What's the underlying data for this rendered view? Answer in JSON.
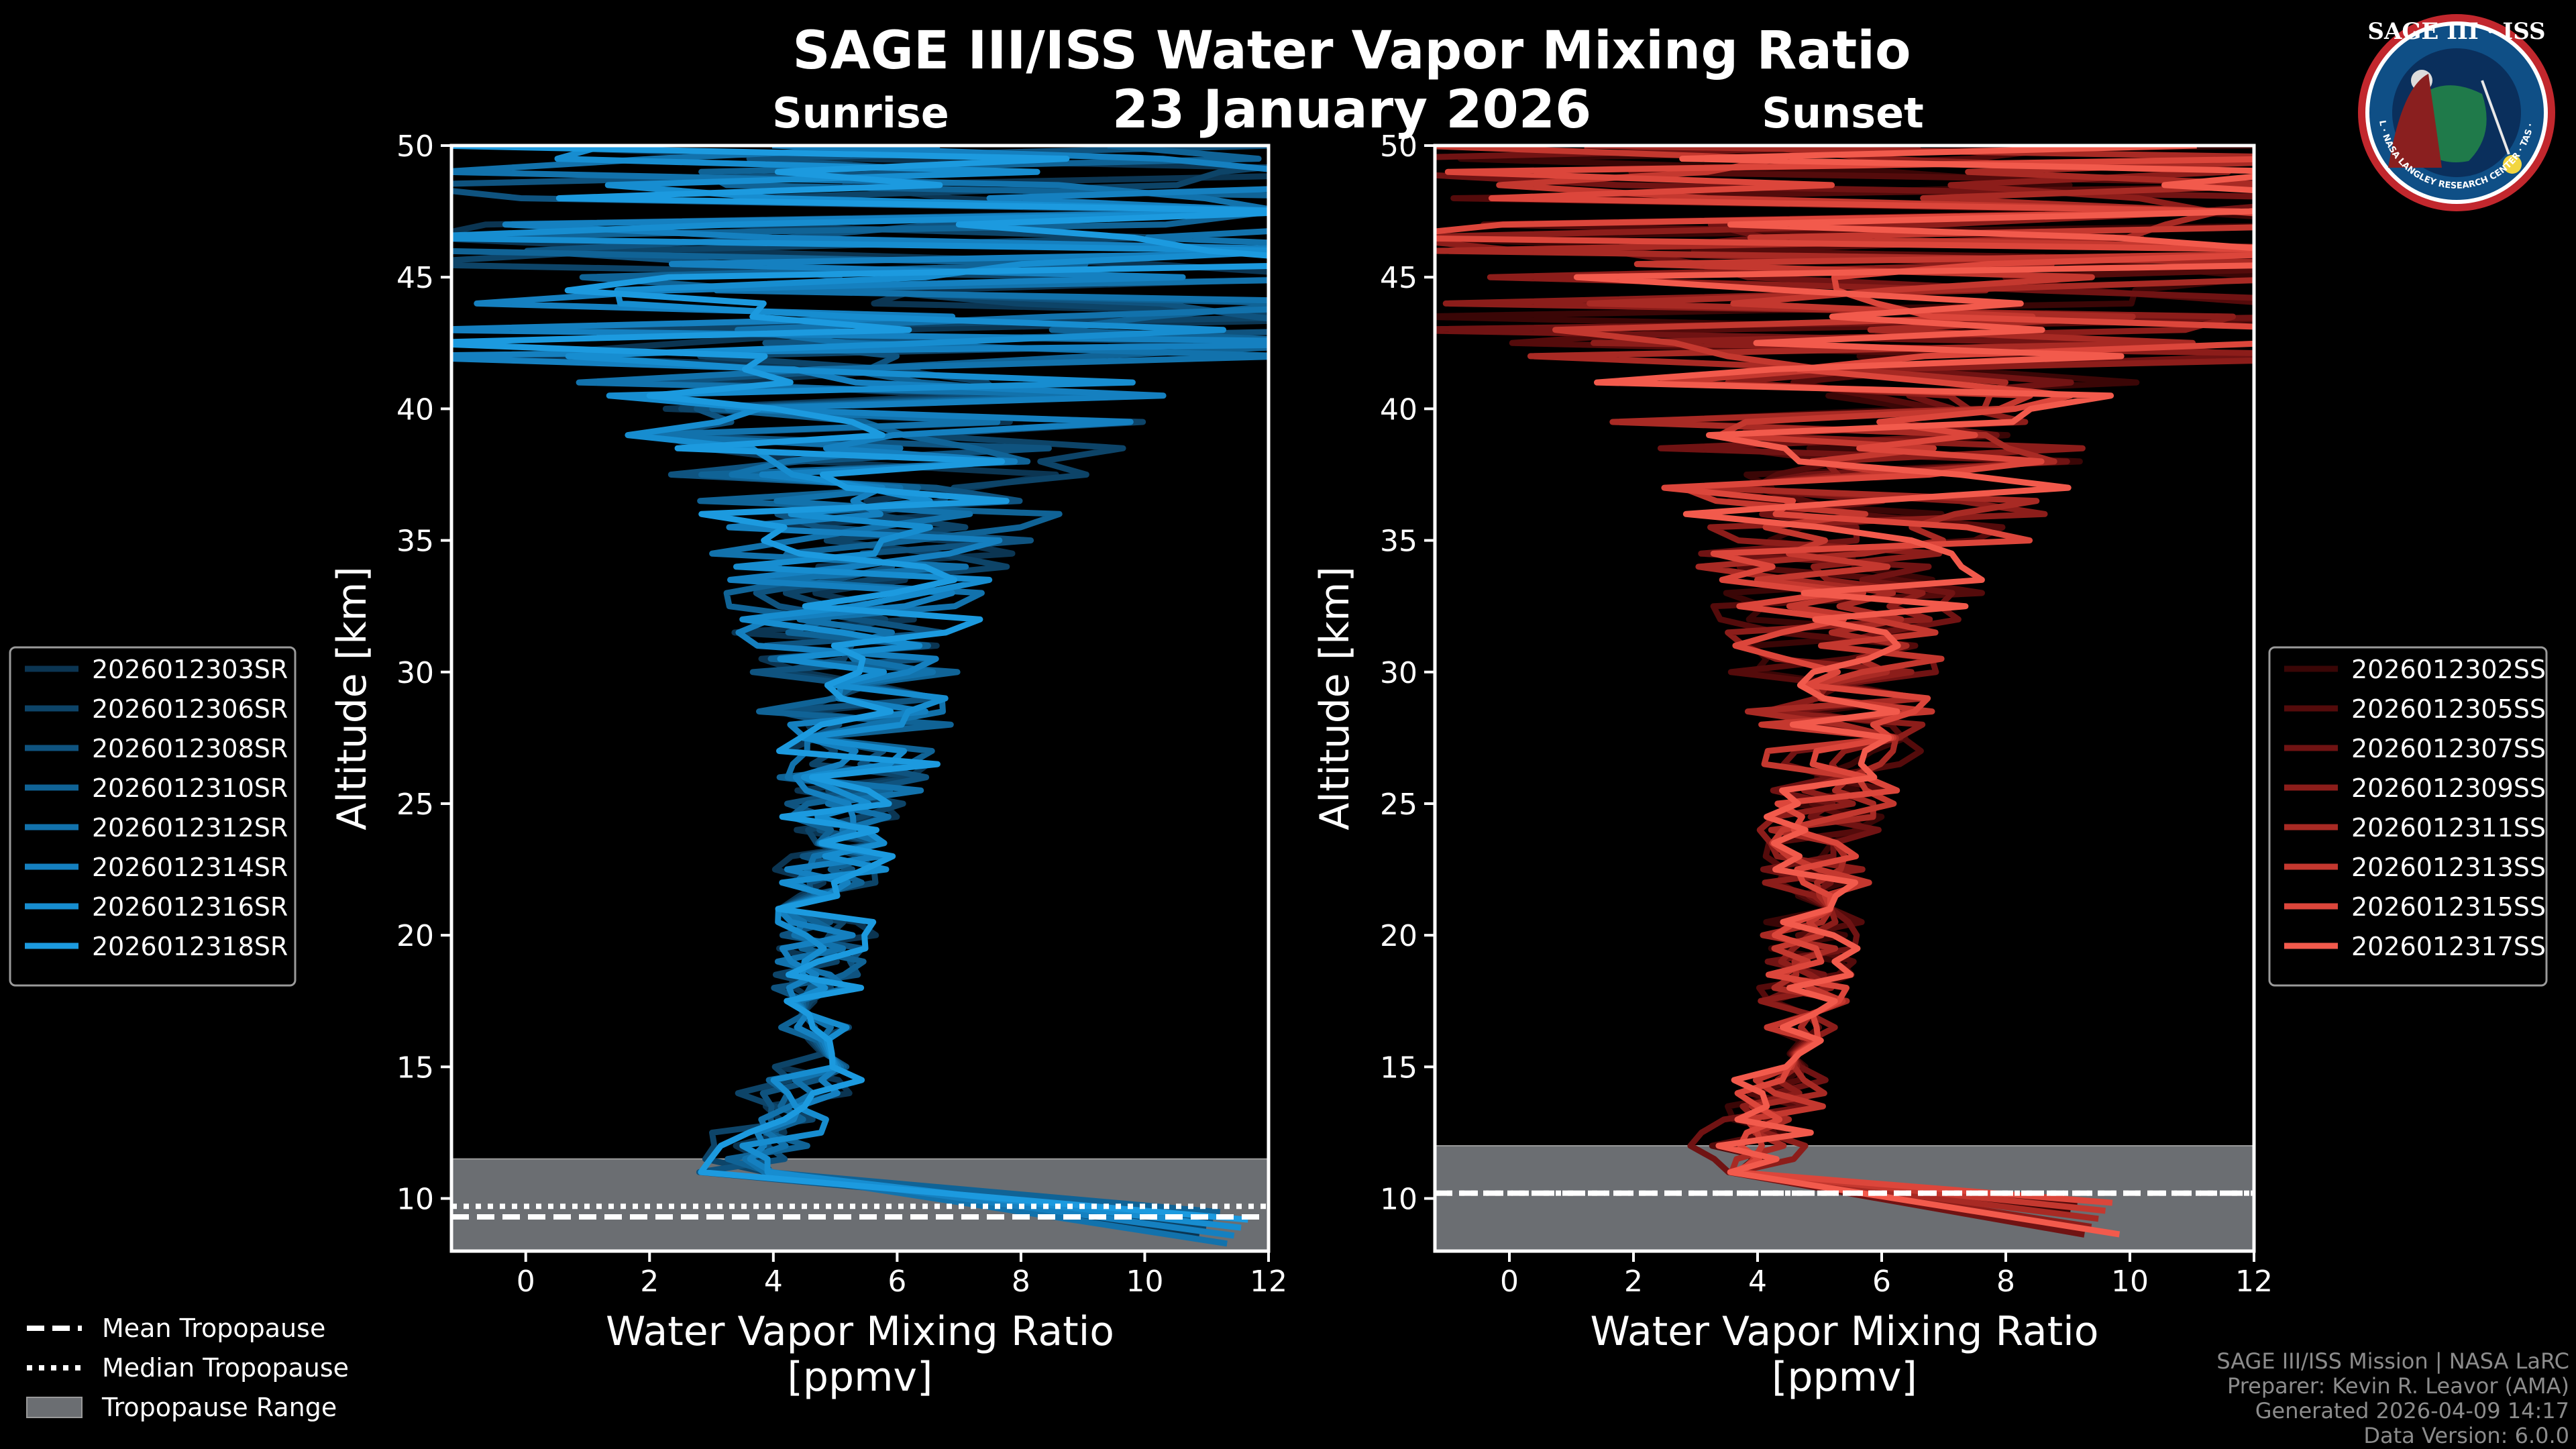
{
  "title": "SAGE III/ISS Water Vapor Mixing Ratio",
  "date": "23 January 2026",
  "colors": {
    "background": "#000000",
    "sunrise": "#1b95d6",
    "sunset": "#f0564a",
    "tropo_band": "#6b6e72"
  },
  "chart_data": [
    {
      "type": "line",
      "panel": "Sunrise",
      "xlabel": "Water Vapor Mixing Ratio\n[ppmv]",
      "ylabel": "Altitude [km]",
      "xlim": [
        -1.2,
        12
      ],
      "ylim": [
        8,
        50
      ],
      "xticks": [
        0,
        2,
        4,
        6,
        8,
        10,
        12
      ],
      "yticks": [
        10,
        15,
        20,
        25,
        30,
        35,
        40,
        45,
        50
      ],
      "legend_position": "left",
      "tropopause": {
        "mean_km": 9.3,
        "median_km": 9.7,
        "range_km": [
          8,
          11.5
        ]
      },
      "series": [
        {
          "name": "2026012303SR",
          "color": "#0b3552"
        },
        {
          "name": "2026012306SR",
          "color": "#0d4468"
        },
        {
          "name": "2026012308SR",
          "color": "#0f537f"
        },
        {
          "name": "2026012310SR",
          "color": "#106396"
        },
        {
          "name": "2026012312SR",
          "color": "#1272ac"
        },
        {
          "name": "2026012314SR",
          "color": "#1580c0"
        },
        {
          "name": "2026012316SR",
          "color": "#178dd0"
        },
        {
          "name": "2026012318SR",
          "color": "#1c9adf"
        }
      ]
    },
    {
      "type": "line",
      "panel": "Sunset",
      "xlabel": "Water Vapor Mixing Ratio\n[ppmv]",
      "ylabel": "Altitude [km]",
      "xlim": [
        -1.2,
        12
      ],
      "ylim": [
        8,
        50
      ],
      "xticks": [
        0,
        2,
        4,
        6,
        8,
        10,
        12
      ],
      "yticks": [
        10,
        15,
        20,
        25,
        30,
        35,
        40,
        45,
        50
      ],
      "legend_position": "right",
      "tropopause": {
        "mean_km": 10.2,
        "median_km": 10.2,
        "range_km": [
          8,
          12
        ]
      },
      "series": [
        {
          "name": "2026012302SS",
          "color": "#3a0606"
        },
        {
          "name": "2026012305SS",
          "color": "#540b0b"
        },
        {
          "name": "2026012307SS",
          "color": "#701313"
        },
        {
          "name": "2026012309SS",
          "color": "#8c1d1a"
        },
        {
          "name": "2026012311SS",
          "color": "#a82a24"
        },
        {
          "name": "2026012313SS",
          "color": "#c4382f"
        },
        {
          "name": "2026012315SS",
          "color": "#dc463b"
        },
        {
          "name": "2026012317SS",
          "color": "#f25a4c"
        }
      ]
    }
  ],
  "tropo_legend": [
    "Mean Tropopause",
    "Median Tropopause",
    "Tropopause Range"
  ],
  "footer": [
    "SAGE III/ISS Mission | NASA LaRC",
    "Preparer: Kevin R. Leavor (AMA)",
    "Generated 2026-04-09 14:17",
    "Data Version: 6.0.0"
  ],
  "logo": {
    "top": "SAGE III · ISS",
    "ring": "BALL · NASA LANGLEY RESEARCH CENTER · TAS · ESA"
  }
}
